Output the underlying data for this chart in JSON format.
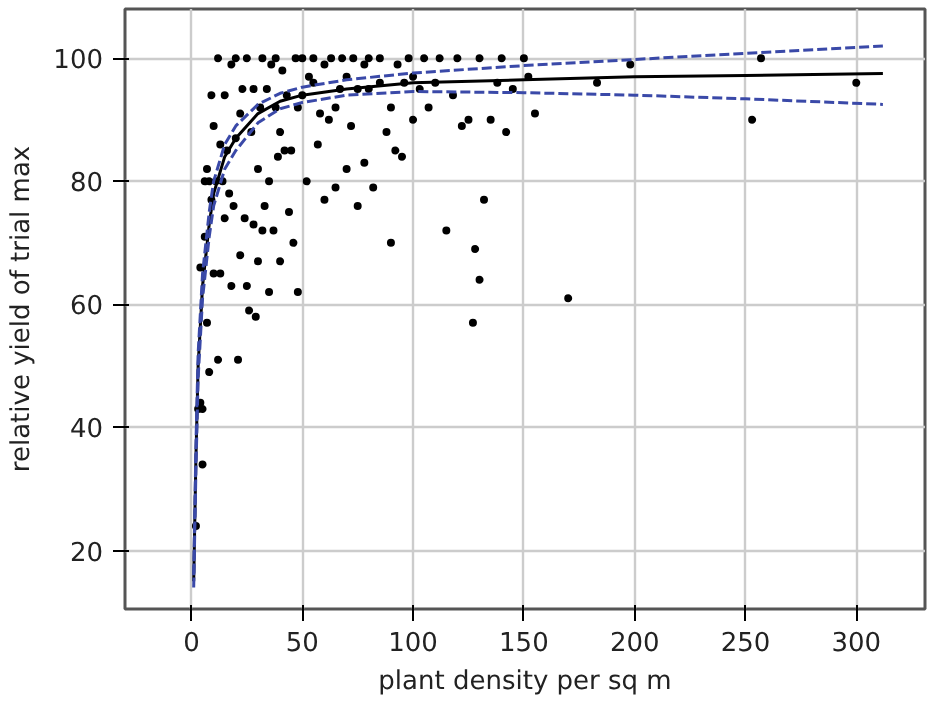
{
  "chart_data": {
    "type": "scatter",
    "xlabel": "plant density per sq m",
    "ylabel": "relative yield of trial max",
    "xlim": [
      -30,
      331
    ],
    "ylim": [
      10.5,
      108
    ],
    "xticks": [
      0,
      50,
      100,
      150,
      200,
      250,
      300
    ],
    "yticks": [
      20,
      40,
      60,
      80,
      100
    ],
    "grid": true,
    "series": [
      {
        "type": "scatter",
        "color": "#000000",
        "marker": "circle",
        "x": [
          2,
          3,
          4,
          4,
          5,
          5,
          6,
          6,
          7,
          7,
          8,
          8,
          9,
          9,
          10,
          10,
          11,
          12,
          12,
          13,
          13,
          14,
          15,
          15,
          16,
          17,
          18,
          18,
          19,
          20,
          20,
          21,
          22,
          22,
          23,
          24,
          25,
          25,
          26,
          27,
          28,
          28,
          29,
          30,
          30,
          31,
          32,
          32,
          33,
          34,
          35,
          35,
          36,
          37,
          38,
          38,
          39,
          40,
          40,
          41,
          42,
          43,
          44,
          45,
          46,
          47,
          48,
          48,
          50,
          50,
          52,
          53,
          55,
          55,
          57,
          58,
          60,
          60,
          62,
          63,
          65,
          65,
          67,
          68,
          70,
          70,
          72,
          73,
          75,
          75,
          78,
          78,
          80,
          80,
          82,
          85,
          85,
          88,
          90,
          90,
          92,
          93,
          95,
          96,
          98,
          100,
          100,
          103,
          105,
          107,
          110,
          112,
          115,
          118,
          120,
          122,
          125,
          127,
          128,
          130,
          130,
          132,
          135,
          138,
          140,
          142,
          145,
          150,
          152,
          155,
          170,
          183,
          198,
          253,
          257,
          300
        ],
        "values": [
          24,
          43,
          44,
          66,
          34,
          43,
          71,
          80,
          57,
          82,
          49,
          80,
          77,
          94,
          65,
          89,
          80,
          100,
          51,
          65,
          86,
          80,
          74,
          94,
          85,
          78,
          63,
          99,
          76,
          100,
          87,
          51,
          68,
          91,
          95,
          74,
          63,
          100,
          59,
          88,
          95,
          73,
          58,
          82,
          67,
          92,
          100,
          72,
          76,
          95,
          80,
          62,
          99,
          72,
          92,
          100,
          84,
          88,
          67,
          98,
          85,
          94,
          75,
          85,
          70,
          100,
          62,
          92,
          94,
          100,
          80,
          97,
          96,
          100,
          86,
          91,
          99,
          77,
          90,
          100,
          79,
          92,
          95,
          100,
          82,
          97,
          89,
          100,
          76,
          95,
          83,
          99,
          100,
          95,
          79,
          96,
          100,
          88,
          92,
          70,
          85,
          99,
          84,
          96,
          100,
          97,
          90,
          95,
          100,
          92,
          96,
          100,
          72,
          94,
          100,
          89,
          90,
          57,
          69,
          100,
          64,
          77,
          90,
          96,
          100,
          88,
          95,
          100,
          97,
          91,
          61,
          96,
          99,
          90,
          100,
          96
        ]
      },
      {
        "type": "line",
        "color": "#000000",
        "line_style": "solid",
        "x": [
          1,
          2,
          3,
          5,
          8,
          10,
          15,
          20,
          30,
          40,
          50,
          70,
          100,
          150,
          200,
          250,
          312
        ],
        "values": [
          15,
          35,
          50,
          63,
          73,
          78,
          84,
          87,
          91,
          93,
          94,
          95,
          96,
          96.5,
          97,
          97.2,
          97.5
        ]
      },
      {
        "type": "line",
        "color": "#3a49a8",
        "line_style": "dashed",
        "x": [
          1,
          2,
          3,
          5,
          8,
          10,
          15,
          20,
          30,
          40,
          50,
          70,
          100,
          150,
          200,
          250,
          312
        ],
        "values": [
          16,
          37,
          52,
          65,
          75,
          80,
          86,
          89,
          92.5,
          94.3,
          95.3,
          96.5,
          97.6,
          98.8,
          99.8,
          100.8,
          102
        ]
      },
      {
        "type": "line",
        "color": "#3a49a8",
        "line_style": "dashed",
        "x": [
          1,
          2,
          3,
          5,
          8,
          10,
          15,
          20,
          30,
          40,
          50,
          70,
          100,
          150,
          200,
          250,
          312
        ],
        "values": [
          14,
          33,
          48,
          61,
          71,
          76,
          82,
          85,
          89.5,
          91.8,
          92.8,
          94,
          94.6,
          94.4,
          94,
          93.4,
          92.5
        ]
      }
    ]
  }
}
